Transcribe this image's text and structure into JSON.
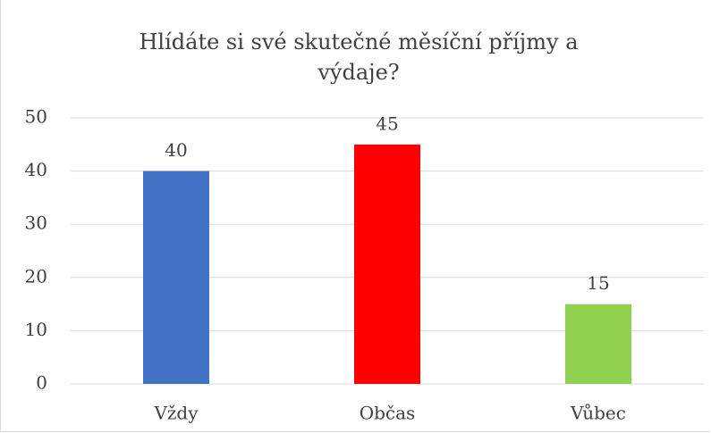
{
  "chart_data": {
    "type": "bar",
    "title": "Hlídáte si své skutečné měsíční příjmy a výdaje?",
    "categories": [
      "Vždy",
      "Občas",
      "Vůbec"
    ],
    "values": [
      40,
      45,
      15
    ],
    "colors": [
      "#4472c4",
      "#ff0000",
      "#92d050"
    ],
    "ylim": [
      0,
      50
    ],
    "yticks": [
      0,
      10,
      20,
      30,
      40,
      50
    ],
    "grid": true
  }
}
